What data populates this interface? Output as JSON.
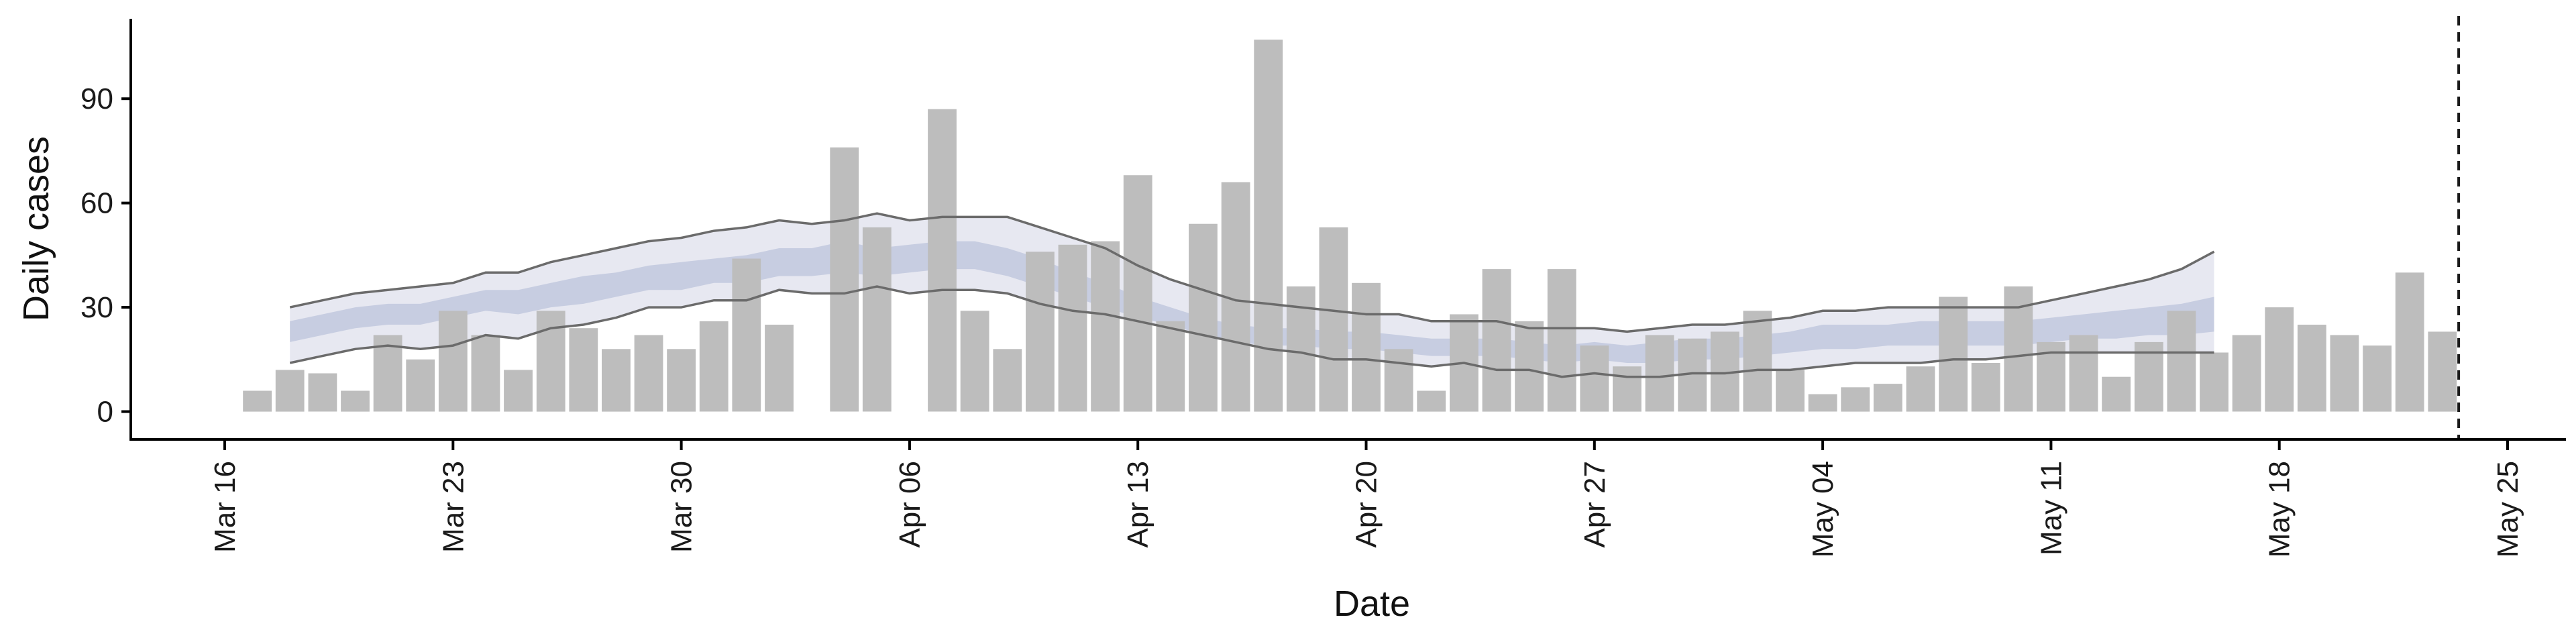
{
  "chart_data": {
    "type": "bar",
    "title": "",
    "xlabel": "Date",
    "ylabel": "Daily cases",
    "ylim": [
      -8,
      113
    ],
    "yticks": [
      0,
      30,
      60,
      90
    ],
    "xlim": [
      "2020-03-16",
      "2020-05-25"
    ],
    "xticks": [
      {
        "date": "2020-03-16",
        "label": "Mar 16"
      },
      {
        "date": "2020-03-23",
        "label": "Mar 23"
      },
      {
        "date": "2020-03-30",
        "label": "Mar 30"
      },
      {
        "date": "2020-04-06",
        "label": "Apr 06"
      },
      {
        "date": "2020-04-13",
        "label": "Apr 13"
      },
      {
        "date": "2020-04-20",
        "label": "Apr 20"
      },
      {
        "date": "2020-04-27",
        "label": "Apr 27"
      },
      {
        "date": "2020-05-04",
        "label": "May 04"
      },
      {
        "date": "2020-05-11",
        "label": "May 11"
      },
      {
        "date": "2020-05-18",
        "label": "May 18"
      },
      {
        "date": "2020-05-25",
        "label": "May 25"
      }
    ],
    "vline_date": "2020-05-23",
    "bars": {
      "start_date": "2020-03-17",
      "color": "#bdbdbd",
      "values": [
        6,
        12,
        11,
        6,
        22,
        15,
        29,
        22,
        12,
        29,
        24,
        18,
        22,
        18,
        26,
        44,
        25,
        0,
        76,
        53,
        0,
        87,
        29,
        18,
        46,
        48,
        49,
        68,
        26,
        54,
        66,
        107,
        36,
        53,
        37,
        18,
        6,
        28,
        41,
        26,
        41,
        19,
        13,
        22,
        21,
        23,
        29,
        12,
        5,
        7,
        8,
        13,
        33,
        14,
        36,
        20,
        22,
        10,
        20,
        29,
        17,
        22,
        30,
        25,
        22,
        19,
        40,
        23
      ]
    },
    "estimate": {
      "start_date": "2020-03-18",
      "band_outer_color": "#e3e4ee",
      "band_inner_color": "#c3cadf",
      "line_color": "#6b6b6b",
      "outer_upper": [
        30,
        32,
        34,
        35,
        36,
        37,
        40,
        40,
        43,
        45,
        47,
        49,
        50,
        52,
        53,
        55,
        54,
        55,
        57,
        55,
        56,
        56,
        56,
        53,
        50,
        47,
        42,
        38,
        35,
        32,
        31,
        30,
        29,
        28,
        28,
        26,
        26,
        26,
        24,
        24,
        24,
        23,
        24,
        25,
        25,
        26,
        27,
        29,
        29,
        30,
        30,
        30,
        30,
        30,
        32,
        34,
        36,
        38,
        41,
        46
      ],
      "outer_lower": [
        14,
        16,
        18,
        19,
        18,
        19,
        22,
        21,
        24,
        25,
        27,
        30,
        30,
        32,
        32,
        35,
        34,
        34,
        36,
        34,
        35,
        35,
        34,
        31,
        29,
        28,
        26,
        24,
        22,
        20,
        18,
        17,
        15,
        15,
        14,
        13,
        14,
        12,
        12,
        10,
        11,
        10,
        10,
        11,
        11,
        12,
        12,
        13,
        14,
        14,
        14,
        15,
        15,
        16,
        17,
        17,
        17,
        17,
        17,
        17
      ],
      "inner_upper": [
        26,
        28,
        30,
        31,
        31,
        33,
        35,
        35,
        37,
        39,
        40,
        42,
        43,
        44,
        45,
        47,
        47,
        49,
        47,
        48,
        49,
        49,
        47,
        44,
        40,
        37,
        33,
        30,
        27,
        25,
        24,
        24,
        23,
        23,
        22,
        21,
        21,
        21,
        20,
        19,
        20,
        19,
        20,
        21,
        21,
        22,
        23,
        25,
        25,
        25,
        26,
        26,
        26,
        26,
        27,
        28,
        29,
        30,
        31,
        33
      ],
      "inner_lower": [
        20,
        22,
        24,
        25,
        25,
        27,
        29,
        28,
        30,
        31,
        33,
        35,
        35,
        37,
        37,
        39,
        39,
        40,
        39,
        40,
        41,
        41,
        39,
        36,
        33,
        30,
        27,
        25,
        22,
        20,
        19,
        19,
        18,
        18,
        17,
        16,
        16,
        16,
        15,
        14,
        15,
        14,
        14,
        15,
        15,
        16,
        17,
        18,
        18,
        19,
        19,
        19,
        19,
        19,
        20,
        21,
        21,
        22,
        22,
        23
      ]
    }
  }
}
